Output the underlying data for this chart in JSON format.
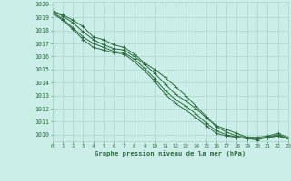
{
  "title": "Graphe pression niveau de la mer (hPa)",
  "background_color": "#cceee8",
  "grid_color": "#aad4ce",
  "line_color": "#2d6a3f",
  "xlim": [
    0,
    23
  ],
  "ylim": [
    1009.5,
    1020.2
  ],
  "yticks": [
    1010,
    1011,
    1012,
    1013,
    1014,
    1015,
    1016,
    1017,
    1018,
    1019,
    1020
  ],
  "xticks": [
    0,
    1,
    2,
    3,
    4,
    5,
    6,
    7,
    8,
    9,
    10,
    11,
    12,
    13,
    14,
    15,
    16,
    17,
    18,
    19,
    20,
    21,
    22,
    23
  ],
  "series": [
    [
      1019.5,
      1019.2,
      1018.8,
      1018.3,
      1017.5,
      1017.3,
      1016.9,
      1016.7,
      1016.2,
      1015.5,
      1015.0,
      1014.4,
      1013.7,
      1013.0,
      1012.2,
      1011.4,
      1010.6,
      1010.2,
      1009.9,
      1009.8,
      1009.8,
      1009.9,
      1010.1,
      1009.8
    ],
    [
      1019.5,
      1019.1,
      1018.6,
      1017.9,
      1017.3,
      1016.9,
      1016.6,
      1016.5,
      1016.0,
      1015.4,
      1014.7,
      1013.9,
      1013.1,
      1012.6,
      1012.0,
      1011.3,
      1010.7,
      1010.4,
      1010.1,
      1009.8,
      1009.7,
      1009.8,
      1010.0,
      1009.7
    ],
    [
      1019.4,
      1018.9,
      1018.2,
      1017.5,
      1017.0,
      1016.7,
      1016.4,
      1016.3,
      1015.8,
      1015.1,
      1014.3,
      1013.4,
      1012.7,
      1012.2,
      1011.6,
      1010.9,
      1010.3,
      1010.0,
      1009.8,
      1009.7,
      1009.7,
      1009.8,
      1009.9,
      1009.7
    ],
    [
      1019.3,
      1018.8,
      1018.1,
      1017.3,
      1016.7,
      1016.5,
      1016.3,
      1016.2,
      1015.6,
      1014.9,
      1014.1,
      1013.1,
      1012.4,
      1011.9,
      1011.3,
      1010.7,
      1010.1,
      1009.9,
      1009.8,
      1009.7,
      1009.6,
      1009.8,
      1009.9,
      1009.7
    ]
  ]
}
